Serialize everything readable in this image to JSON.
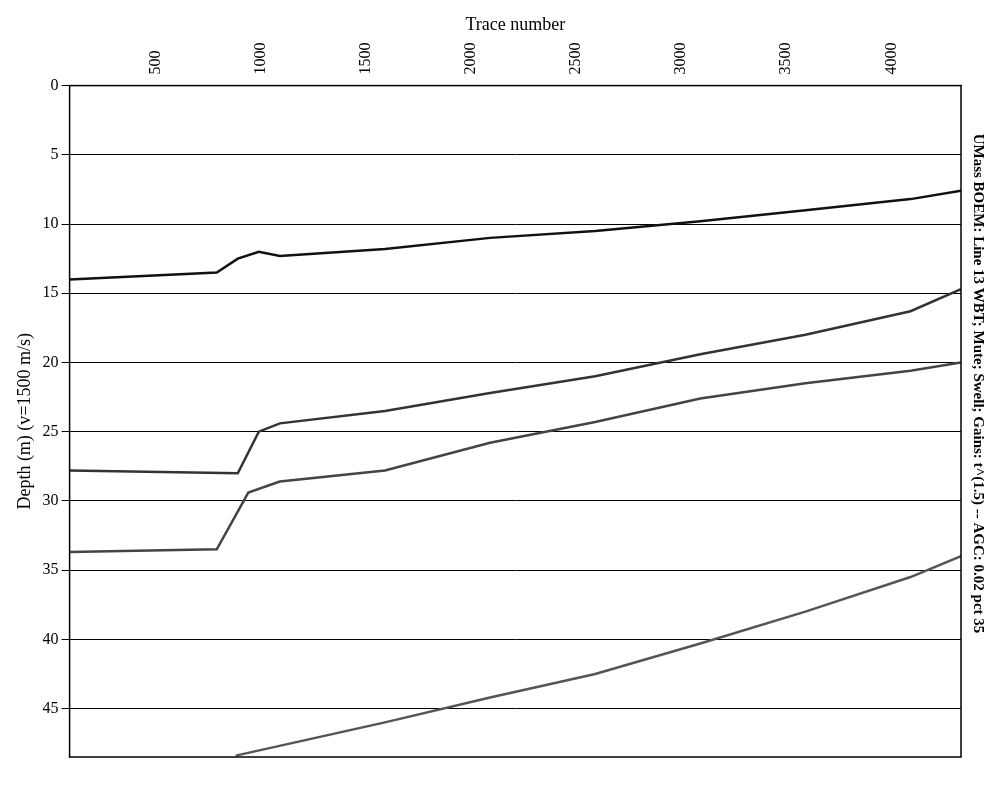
{
  "chart_data": {
    "type": "line",
    "title": "UMass BOEM: Line 13 WBT; Mute; Swell; Gains: t^(1.5) -- AGC: 0.02 pct 35",
    "x_label": "Trace number",
    "y_label": "Depth (m) (v=1500 m/s)",
    "xlim": [
      0,
      4240
    ],
    "xticks": [
      500,
      1000,
      1500,
      2000,
      2500,
      3000,
      3500,
      4000
    ],
    "ylim": [
      0,
      48.5
    ],
    "yticks": [
      0,
      5,
      10,
      15,
      20,
      25,
      30,
      35,
      40,
      45
    ],
    "grid": "y",
    "series": [
      {
        "color": "#111111",
        "line_style": "solid",
        "x": [
          0,
          700,
          800,
          900,
          1000,
          1500,
          2000,
          2500,
          3000,
          3500,
          4000,
          4240
        ],
        "values": [
          14,
          13.5,
          12.5,
          12,
          12.3,
          11.8,
          11,
          10.5,
          9.8,
          9,
          8.2,
          7.6
        ]
      },
      {
        "color": "#333333",
        "line_style": "solid",
        "x": [
          0,
          800,
          900,
          1000,
          1500,
          2000,
          2500,
          3000,
          3500,
          4000,
          4240
        ],
        "values": [
          27.8,
          28,
          25,
          24.4,
          23.5,
          22.2,
          21,
          19.4,
          18,
          16.3,
          14.7
        ]
      },
      {
        "color": "#444444",
        "line_style": "solid",
        "x": [
          0,
          700,
          850,
          1000,
          1500,
          2000,
          2500,
          3000,
          3500,
          4000,
          4240
        ],
        "values": [
          33.7,
          33.5,
          29.4,
          28.6,
          27.8,
          25.8,
          24.3,
          22.6,
          21.5,
          20.6,
          20
        ]
      },
      {
        "color": "#555555",
        "line_style": "solid",
        "x": [
          790,
          1500,
          2000,
          2500,
          3000,
          3500,
          4000,
          4240
        ],
        "values": [
          48.4,
          46,
          44.2,
          42.5,
          40.3,
          38,
          35.5,
          34
        ]
      }
    ]
  }
}
